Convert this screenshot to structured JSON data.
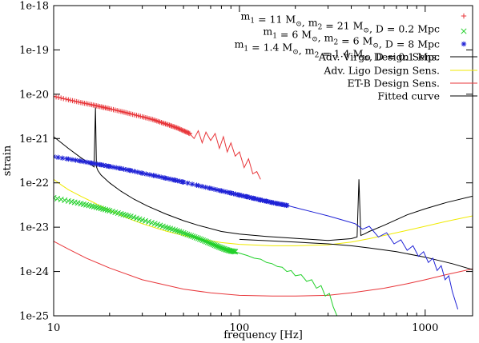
{
  "chart_data": {
    "type": "line",
    "xlabel": "frequency [Hz]",
    "ylabel": "strain",
    "x_scale": "log",
    "y_scale": "log",
    "xlim": [
      10,
      1800
    ],
    "ylim": [
      1e-25,
      1e-18
    ],
    "xticks": [
      {
        "value": 10,
        "label": "10"
      },
      {
        "value": 100,
        "label": "100"
      },
      {
        "value": 1000,
        "label": "1000"
      }
    ],
    "yticks": [
      {
        "value": 1e-25,
        "label": "1e-25"
      },
      {
        "value": 1e-24,
        "label": "1e-24"
      },
      {
        "value": 1e-23,
        "label": "1e-23"
      },
      {
        "value": 1e-22,
        "label": "1e-22"
      },
      {
        "value": 1e-21,
        "label": "1e-21"
      },
      {
        "value": 1e-20,
        "label": "1e-20"
      },
      {
        "value": 1e-19,
        "label": "1e-19"
      },
      {
        "value": 1e-18,
        "label": "1e-18"
      }
    ],
    "grid": false,
    "legend_position": "top-right",
    "series": [
      {
        "name": "m<sub>1</sub> = 11 M<sub>⊙</sub>, m<sub>2</sub> = 21 M<sub>⊙</sub>, D = 0.2 Mpc",
        "label_parts": [
          [
            "m",
            ""
          ],
          [
            "1",
            "sub"
          ],
          [
            " = 11 M",
            ""
          ],
          [
            "⊙",
            "sub"
          ],
          [
            ", m",
            ""
          ],
          [
            "2",
            "sub"
          ],
          [
            " = 21 M",
            ""
          ],
          [
            "⊙",
            "sub"
          ],
          [
            ", D = 0.2 Mpc",
            ""
          ]
        ],
        "style": "points",
        "marker": "+",
        "color": "#e8363a",
        "x": [
          10,
          12,
          14,
          16,
          18,
          20,
          23,
          26,
          30,
          34,
          38,
          42,
          46,
          50,
          54
        ],
        "y": [
          9e-21,
          7.5e-21,
          6.5e-21,
          5.8e-21,
          5.2e-21,
          4.7e-21,
          4.1e-21,
          3.6e-21,
          3.1e-21,
          2.7e-21,
          2.3e-21,
          2e-21,
          1.75e-21,
          1.5e-21,
          1.3e-21
        ],
        "tail": {
          "x": [
            54,
            57,
            60,
            63,
            66,
            70,
            74,
            78,
            82,
            86,
            90,
            95,
            100,
            106,
            112,
            118,
            124,
            130
          ],
          "y": [
            1.3e-21,
            1e-21,
            1.5e-21,
            8e-22,
            1.4e-21,
            9e-22,
            1.3e-21,
            6e-22,
            1.1e-21,
            5e-22,
            8e-22,
            4e-22,
            5e-22,
            2.2e-22,
            3.5e-22,
            1.6e-22,
            1.8e-22,
            1.2e-22
          ]
        }
      },
      {
        "name": "m<sub>1</sub> = 6 M<sub>⊙</sub>, m<sub>2</sub> = 6 M<sub>⊙</sub>, D = 8 Mpc",
        "label_parts": [
          [
            "m",
            ""
          ],
          [
            "1",
            "sub"
          ],
          [
            " = 6 M",
            ""
          ],
          [
            "⊙",
            "sub"
          ],
          [
            ", m",
            ""
          ],
          [
            "2",
            "sub"
          ],
          [
            " = 6 M",
            ""
          ],
          [
            "⊙",
            "sub"
          ],
          [
            ", D = 8 Mpc",
            ""
          ]
        ],
        "style": "points",
        "marker": "x",
        "color": "#22d02a",
        "x": [
          10,
          12,
          14,
          16,
          18,
          20,
          23,
          26,
          30,
          35,
          40,
          45,
          50,
          55,
          60,
          65,
          70,
          75,
          80,
          85,
          90,
          95
        ],
        "y": [
          4.6e-23,
          3.9e-23,
          3.4e-23,
          3e-23,
          2.65e-23,
          2.35e-23,
          2e-23,
          1.75e-23,
          1.45e-23,
          1.2e-23,
          1e-23,
          8.6e-24,
          7.4e-24,
          6.4e-24,
          5.6e-24,
          4.9e-24,
          4.3e-24,
          3.8e-24,
          3.4e-24,
          3.1e-24,
          2.9e-24,
          2.8e-24
        ],
        "tail": {
          "x": [
            95,
            100,
            110,
            120,
            130,
            140,
            150,
            160,
            170,
            180,
            190,
            200,
            215,
            230,
            245,
            260,
            275,
            290,
            305,
            320,
            335
          ],
          "y": [
            2.8e-24,
            2.6e-24,
            2.3e-24,
            2e-24,
            1.9e-24,
            1.6e-24,
            1.5e-24,
            1.3e-24,
            1.25e-24,
            1e-24,
            1.05e-24,
            8e-25,
            8.5e-25,
            6e-25,
            6.5e-25,
            4.2e-25,
            4.8e-25,
            2.8e-25,
            3.2e-25,
            1.6e-25,
            1e-25
          ]
        }
      },
      {
        "name": "m<sub>1</sub> = 1.4 M<sub>⊙</sub>, m<sub>2</sub> = 1.4 M<sub>⊙</sub>, D = 0.1 Mpc",
        "label_parts": [
          [
            "m",
            ""
          ],
          [
            "1",
            "sub"
          ],
          [
            " = 1.4 M",
            ""
          ],
          [
            "⊙",
            "sub"
          ],
          [
            ", m",
            ""
          ],
          [
            "2",
            "sub"
          ],
          [
            " = 1.4 M",
            ""
          ],
          [
            "⊙",
            "sub"
          ],
          [
            ", D = 0.1 Mpc",
            ""
          ]
        ],
        "style": "points",
        "marker": "*",
        "color": "#1f22d6",
        "x": [
          10,
          12,
          14,
          16,
          18,
          20,
          23,
          26,
          30,
          35,
          40,
          45,
          50,
          60,
          70,
          80,
          90,
          100,
          110,
          120,
          130,
          140,
          150,
          160,
          170,
          180
        ],
        "y": [
          3.9e-22,
          3.45e-22,
          3.1e-22,
          2.8e-22,
          2.55e-22,
          2.35e-22,
          2.1e-22,
          1.9e-22,
          1.65e-22,
          1.45e-22,
          1.28e-22,
          1.15e-22,
          1.04e-22,
          8.7e-23,
          7.5e-23,
          6.6e-23,
          5.9e-23,
          5.3e-23,
          4.85e-23,
          4.45e-23,
          4.1e-23,
          3.85e-23,
          3.6e-23,
          3.4e-23,
          3.25e-23,
          3.1e-23
        ],
        "tail": {
          "x": [
            180,
            220,
            260,
            300,
            340,
            380,
            420,
            460,
            500,
            560,
            620,
            680,
            740,
            800,
            860,
            920,
            980,
            1040,
            1100,
            1160,
            1220,
            1280,
            1340,
            1400,
            1450,
            1500
          ],
          "y": [
            3.1e-23,
            2.5e-23,
            2.1e-23,
            1.8e-23,
            1.55e-23,
            1.35e-23,
            1.2e-23,
            9e-24,
            1.05e-23,
            6e-24,
            7.5e-24,
            4.2e-24,
            5.2e-24,
            3e-24,
            3.8e-24,
            2.2e-24,
            2.8e-24,
            1.6e-24,
            2e-24,
            1.05e-24,
            1.35e-24,
            6.5e-25,
            8e-25,
            3.5e-25,
            2.2e-25,
            1.4e-25
          ]
        }
      },
      {
        "name": "Adv. Virgo Design Sens.",
        "style": "line",
        "color": "#000000",
        "x": [
          10,
          12,
          14,
          15.5,
          16.5,
          16.8,
          17.0,
          17.3,
          18,
          20,
          23,
          27,
          32,
          40,
          50,
          60,
          80,
          100,
          140,
          200,
          300,
          400,
          430,
          440,
          450,
          470,
          500,
          600,
          800,
          1000,
          1300,
          1800
        ],
        "y": [
          1.1e-21,
          6e-22,
          3.7e-22,
          2.8e-22,
          2.3e-22,
          5e-21,
          2.3e-22,
          1.9e-22,
          1.5e-22,
          1e-22,
          6.5e-23,
          4.3e-23,
          3e-23,
          2e-23,
          1.4e-23,
          1.1e-23,
          8e-24,
          7e-24,
          6.2e-24,
          5.6e-24,
          5e-24,
          5.5e-24,
          6e-24,
          1.2e-22,
          6.5e-24,
          7e-24,
          8e-24,
          1.1e-23,
          1.9e-23,
          2.6e-23,
          3.6e-23,
          5e-23
        ]
      },
      {
        "name": "Adv. Ligo Design Sens.",
        "style": "line",
        "color": "#f0ea00",
        "x": [
          10,
          11,
          12,
          14,
          16,
          20,
          25,
          30,
          40,
          50,
          60,
          80,
          100,
          150,
          200,
          300,
          400,
          500,
          600,
          800,
          1000,
          1300,
          1800
        ],
        "y": [
          1.2e-22,
          9e-23,
          7e-23,
          5e-23,
          3.8e-23,
          2.4e-23,
          1.6e-23,
          1.2e-23,
          8.2e-24,
          6.5e-24,
          5.5e-24,
          4.5e-24,
          4.1e-24,
          3.8e-24,
          3.8e-24,
          4e-24,
          4.6e-24,
          5.5e-24,
          6.5e-24,
          8.5e-24,
          1.05e-23,
          1.35e-23,
          1.8e-23
        ]
      },
      {
        "name": "ET-B Design Sens.",
        "style": "line",
        "color": "#e8363a",
        "x": [
          10,
          12,
          15,
          20,
          30,
          50,
          70,
          100,
          150,
          200,
          300,
          400,
          600,
          800,
          1000,
          1300,
          1800
        ],
        "y": [
          4.8e-24,
          3.2e-24,
          2e-24,
          1.2e-24,
          6.5e-25,
          4e-25,
          3.3e-25,
          2.9e-25,
          2.8e-25,
          2.8e-25,
          2.9e-25,
          3.3e-25,
          4.2e-25,
          5.3e-25,
          6.5e-25,
          8.5e-25,
          1.15e-24
        ]
      },
      {
        "name": "Fitted curve",
        "style": "line",
        "color": "#000000",
        "x": [
          100,
          200,
          300,
          400,
          500,
          700,
          1000,
          1400,
          1800
        ],
        "y": [
          5.3e-24,
          4.6e-24,
          4.2e-24,
          3.8e-24,
          3.4e-24,
          2.8e-24,
          2.1e-24,
          1.5e-24,
          1.1e-24
        ]
      }
    ]
  }
}
